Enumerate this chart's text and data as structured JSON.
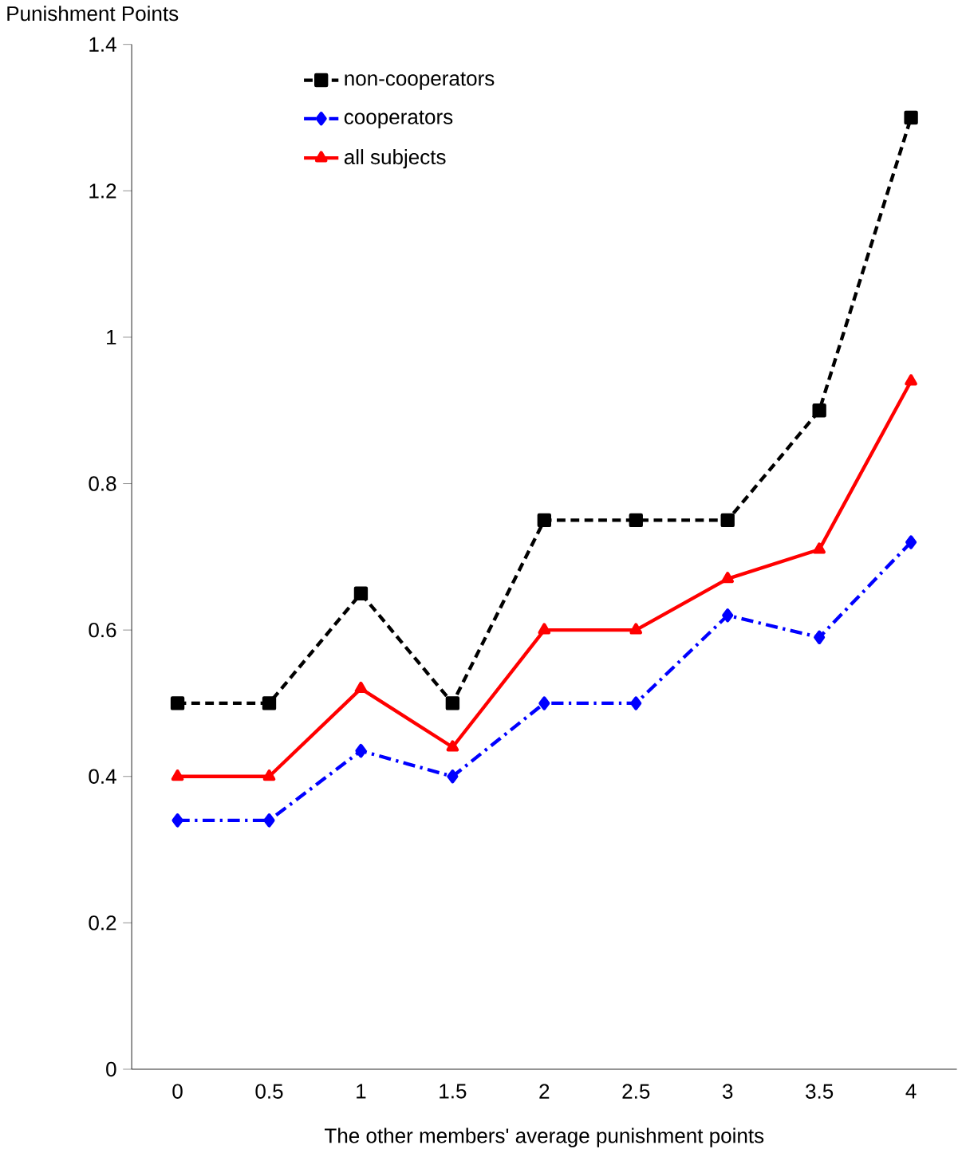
{
  "chart_data": {
    "type": "line",
    "ylabel": "Punishment Points",
    "xlabel": "The other members' average punishment points",
    "categories": [
      "0",
      "0.5",
      "1",
      "1.5",
      "2",
      "2.5",
      "3",
      "3.5",
      "4"
    ],
    "series": [
      {
        "name": "non-cooperators",
        "color": "#000000",
        "marker": "square",
        "line_style": "dashed",
        "values": [
          0.5,
          0.5,
          0.65,
          0.5,
          0.75,
          0.75,
          0.75,
          0.9,
          1.3
        ]
      },
      {
        "name": "cooperators",
        "color": "#0000ff",
        "marker": "diamond",
        "line_style": "dashdot",
        "values": [
          0.34,
          0.34,
          0.435,
          0.4,
          0.5,
          0.5,
          0.62,
          0.59,
          0.72
        ]
      },
      {
        "name": "all subjects",
        "color": "#ff0000",
        "marker": "triangle",
        "line_style": "solid",
        "values": [
          0.4,
          0.4,
          0.52,
          0.44,
          0.6,
          0.6,
          0.67,
          0.71,
          0.94
        ]
      }
    ],
    "ylim": [
      0,
      1.4
    ],
    "yticks": [
      0,
      0.2,
      0.4,
      0.6,
      0.8,
      1,
      1.2,
      1.4
    ],
    "grid": false,
    "legend": "top left"
  }
}
